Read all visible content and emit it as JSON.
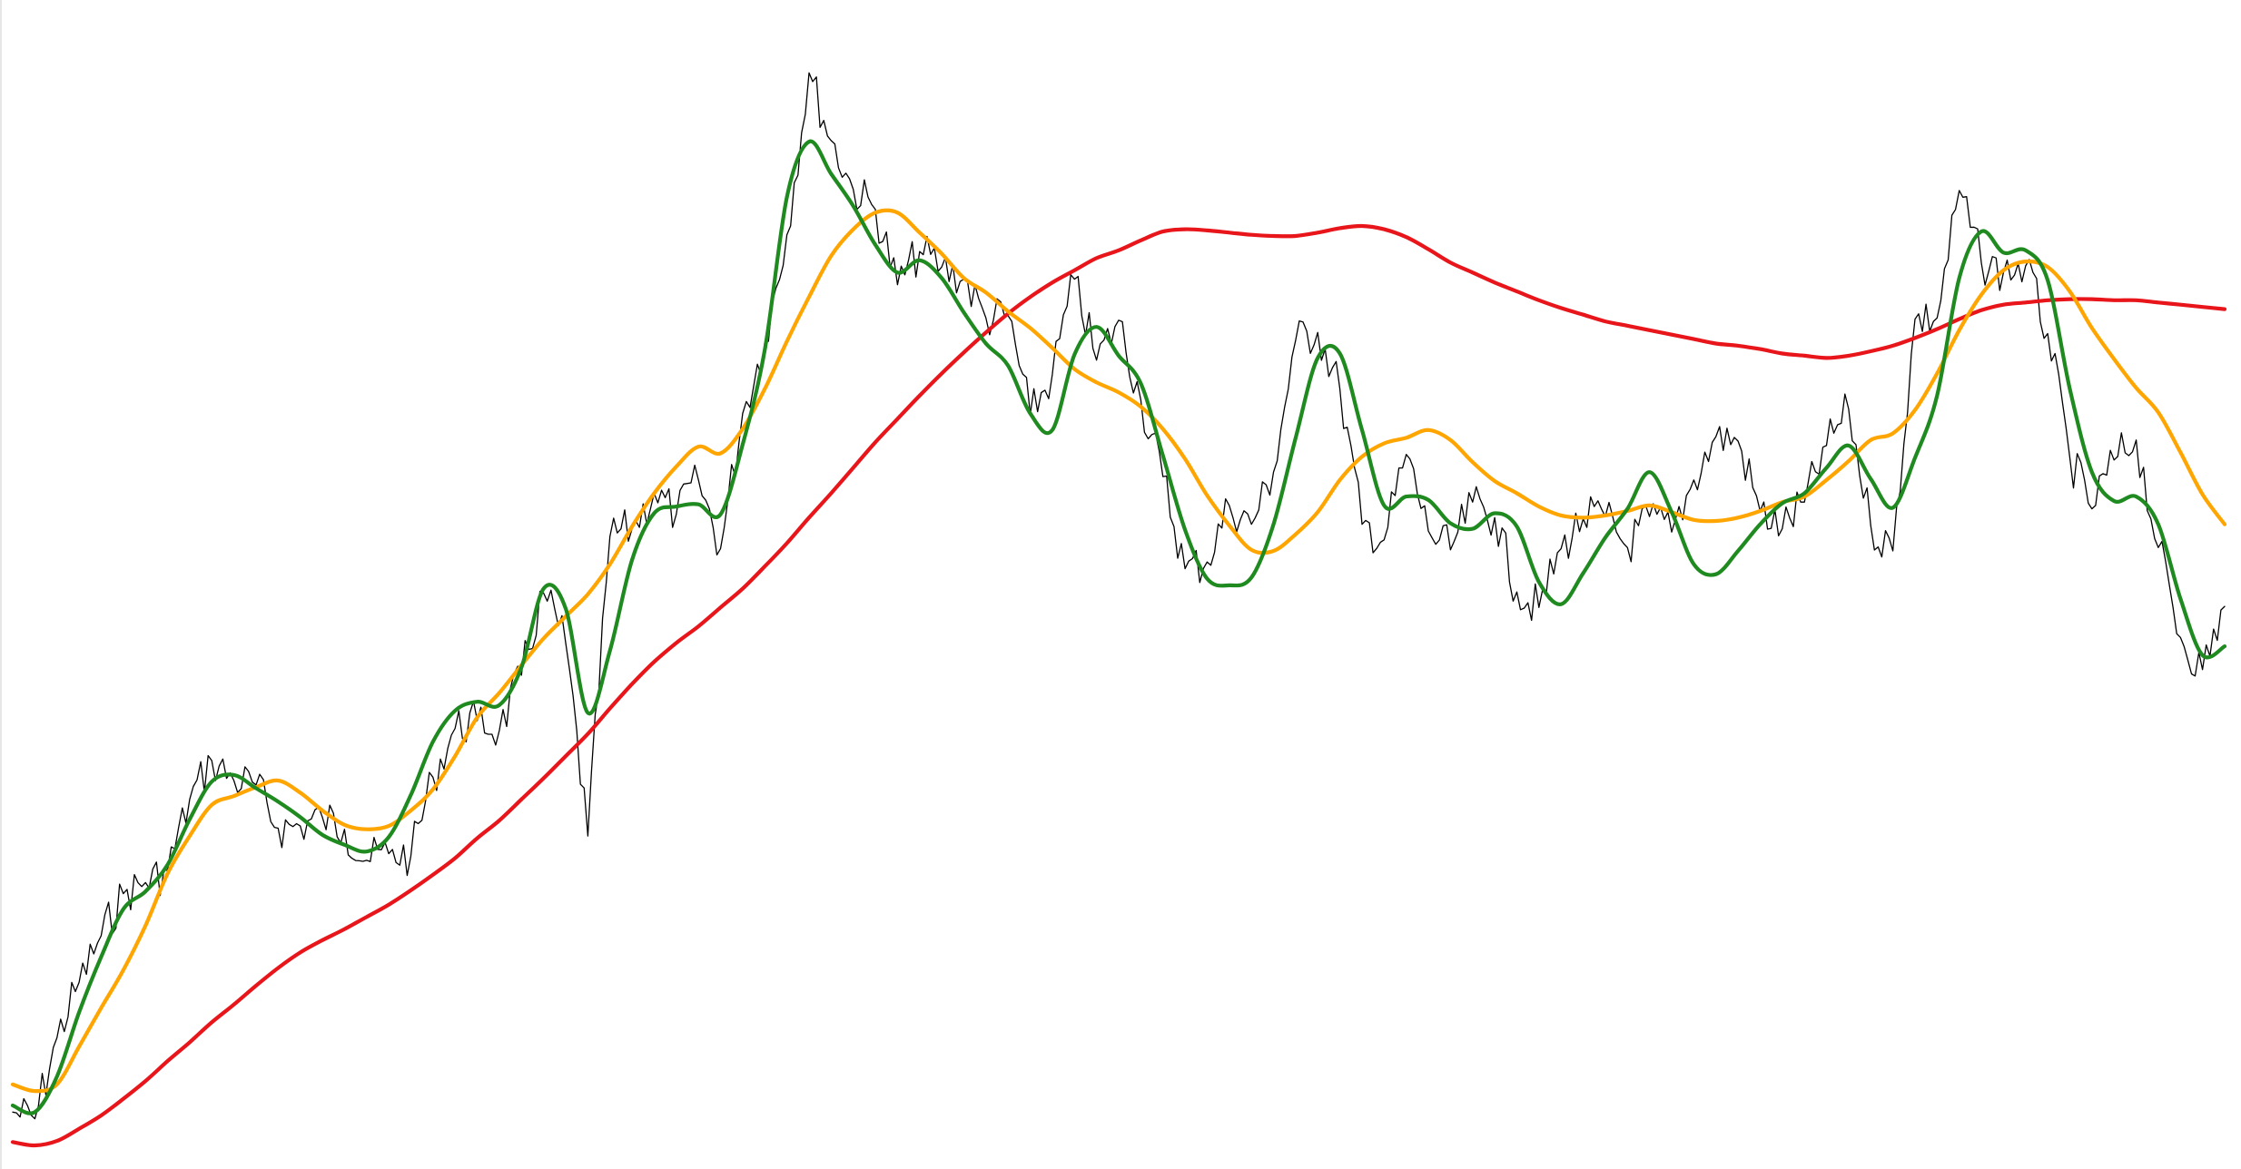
{
  "chart_data": {
    "type": "line",
    "title": "",
    "xlabel": "",
    "ylabel": "",
    "grid": false,
    "legend": "none",
    "xlim": [
      0,
      100
    ],
    "ylim": [
      0,
      100
    ],
    "series": [
      {
        "key": "price",
        "color": "#000000",
        "stroke_role": "thin",
        "x": [
          0,
          1,
          2,
          3,
          4,
          5,
          6,
          7,
          8,
          9,
          10,
          11,
          12,
          13,
          14,
          15,
          16,
          17,
          18,
          19,
          20,
          21,
          22,
          23,
          24,
          25,
          26,
          27,
          28,
          29,
          30,
          31,
          32,
          33,
          34,
          35,
          36,
          37,
          38,
          39,
          40,
          41,
          42,
          43,
          44,
          45,
          46,
          47,
          48,
          49,
          50,
          51,
          52,
          53,
          54,
          55,
          56,
          57,
          58,
          59,
          60,
          61,
          62,
          63,
          64,
          65,
          66,
          67,
          68,
          69,
          70,
          71,
          72,
          73,
          74,
          75,
          76,
          77,
          78,
          79,
          80,
          81,
          82,
          83,
          84,
          85,
          86,
          87,
          88,
          89,
          90,
          91,
          92,
          93,
          94,
          95,
          96,
          97,
          98,
          99,
          100
        ],
        "y": [
          3.0,
          2.4,
          9.7,
          14.7,
          18.9,
          22.7,
          23.7,
          24.8,
          31.2,
          34.7,
          32.9,
          32.5,
          28.6,
          28.8,
          29.6,
          28.5,
          25.7,
          26.3,
          26.1,
          33.2,
          37.6,
          38.3,
          37.4,
          42.4,
          49.8,
          45.3,
          27.9,
          54.9,
          55.6,
          58.8,
          56.9,
          60.0,
          53.8,
          66.0,
          72.4,
          82.1,
          96.7,
          90.6,
          86.2,
          84.4,
          77.6,
          80.6,
          79.2,
          78.1,
          74.6,
          74.8,
          65.9,
          69.5,
          78.1,
          70.8,
          74.4,
          67.2,
          60.3,
          52.0,
          52.6,
          57.7,
          56.0,
          60.7,
          72.6,
          73.3,
          68.2,
          56.0,
          54.6,
          62.3,
          55.4,
          53.7,
          58.0,
          56.6,
          49.9,
          48.5,
          53.8,
          56.5,
          56.7,
          53.9,
          56.7,
          55.3,
          60.0,
          63.9,
          63.5,
          57.2,
          55.6,
          58.0,
          63.1,
          66.4,
          55.9,
          53.6,
          74.5,
          74.6,
          86.1,
          79.6,
          78.7,
          79.3,
          73.2,
          62.0,
          57.4,
          61.8,
          63.6,
          53.9,
          45.8,
          42.9,
          48.6
        ]
      },
      {
        "key": "ma-short",
        "color": "#1f8a1f",
        "stroke_role": "medium",
        "x": [
          0,
          1,
          2,
          3,
          4,
          5,
          6,
          7,
          8,
          9,
          10,
          11,
          12,
          13,
          14,
          15,
          16,
          17,
          18,
          19,
          20,
          21,
          22,
          23,
          24,
          25,
          26,
          27,
          28,
          29,
          30,
          31,
          32,
          33,
          34,
          35,
          36,
          37,
          38,
          39,
          40,
          41,
          42,
          43,
          44,
          45,
          46,
          47,
          48,
          49,
          50,
          51,
          52,
          53,
          54,
          55,
          56,
          57,
          58,
          59,
          60,
          61,
          62,
          63,
          64,
          65,
          66,
          67,
          68,
          69,
          70,
          71,
          72,
          73,
          74,
          75,
          76,
          77,
          78,
          79,
          80,
          81,
          82,
          83,
          84,
          85,
          86,
          87,
          88,
          89,
          90,
          91,
          92,
          93,
          94,
          95,
          96,
          97,
          98,
          99,
          100
        ],
        "y": [
          3.6,
          3.0,
          6.2,
          12.0,
          17.0,
          21.3,
          22.9,
          25.3,
          29.4,
          32.8,
          33.4,
          32.2,
          31.0,
          29.6,
          28.0,
          27.1,
          26.5,
          27.8,
          31.6,
          36.4,
          39.2,
          40.0,
          39.7,
          43.1,
          50.2,
          48.4,
          39.0,
          44.6,
          52.8,
          57.0,
          57.6,
          57.8,
          56.9,
          63.2,
          71.7,
          85.5,
          90.5,
          87.6,
          84.7,
          81.2,
          78.7,
          79.8,
          78.2,
          75.1,
          72.3,
          70.3,
          66.0,
          64.5,
          71.3,
          73.8,
          71.2,
          68.7,
          62.2,
          55.5,
          51.1,
          50.5,
          51.2,
          56.0,
          63.8,
          71.0,
          71.4,
          64.5,
          57.7,
          58.5,
          58.2,
          56.1,
          55.6,
          57.0,
          55.8,
          50.8,
          48.8,
          51.6,
          54.8,
          57.4,
          60.7,
          57.1,
          52.4,
          51.5,
          53.6,
          56.0,
          57.9,
          58.8,
          61.1,
          63.1,
          60.1,
          57.5,
          62.0,
          67.6,
          78.2,
          82.4,
          80.5,
          80.7,
          78.0,
          68.2,
          60.7,
          58.1,
          58.5,
          56.0,
          49.3,
          44.2,
          45.0
        ]
      },
      {
        "key": "ma-medium",
        "color": "#ffa500",
        "stroke_role": "medium",
        "x": [
          0,
          1,
          2,
          3,
          4,
          5,
          6,
          7,
          8,
          9,
          10,
          11,
          12,
          13,
          14,
          15,
          16,
          17,
          18,
          19,
          20,
          21,
          22,
          23,
          24,
          25,
          26,
          27,
          28,
          29,
          30,
          31,
          32,
          33,
          34,
          35,
          36,
          37,
          38,
          39,
          40,
          41,
          42,
          43,
          44,
          45,
          46,
          47,
          48,
          49,
          50,
          51,
          52,
          53,
          54,
          55,
          56,
          57,
          58,
          59,
          60,
          61,
          62,
          63,
          64,
          65,
          66,
          67,
          68,
          69,
          70,
          71,
          72,
          73,
          74,
          75,
          76,
          77,
          78,
          79,
          80,
          81,
          82,
          83,
          84,
          85,
          86,
          87,
          88,
          89,
          90,
          91,
          92,
          93,
          94,
          95,
          96,
          97,
          98,
          99,
          100
        ],
        "y": [
          5.5,
          4.9,
          5.5,
          8.9,
          12.4,
          15.8,
          19.8,
          24.5,
          27.9,
          30.7,
          31.5,
          32.3,
          32.9,
          31.8,
          30.2,
          28.9,
          28.5,
          28.8,
          30.2,
          32.1,
          35.1,
          38.6,
          40.8,
          43.3,
          45.7,
          47.7,
          49.7,
          52.4,
          55.8,
          58.8,
          61.2,
          63.0,
          62.4,
          64.6,
          68.2,
          72.5,
          76.5,
          80.2,
          82.6,
          84.1,
          84.1,
          82.3,
          80.4,
          78.2,
          76.9,
          75.2,
          73.7,
          71.9,
          70.0,
          68.8,
          67.9,
          66.6,
          64.6,
          61.9,
          58.6,
          55.9,
          53.7,
          53.6,
          55.1,
          57.1,
          60.0,
          62.1,
          63.3,
          63.8,
          64.5,
          63.6,
          61.6,
          59.9,
          58.8,
          57.6,
          56.8,
          56.6,
          56.8,
          57.2,
          57.7,
          57.1,
          56.4,
          56.3,
          56.6,
          57.2,
          58.0,
          58.5,
          60.0,
          61.7,
          63.6,
          64.2,
          66.3,
          69.6,
          73.5,
          76.7,
          78.9,
          79.7,
          79.2,
          77.0,
          73.7,
          70.9,
          68.3,
          66.1,
          62.5,
          58.7,
          56.0
        ]
      },
      {
        "key": "ma-long",
        "color": "#e8151b",
        "stroke_role": "medium",
        "x": [
          0,
          1,
          2,
          3,
          4,
          5,
          6,
          7,
          8,
          9,
          10,
          11,
          12,
          13,
          14,
          15,
          16,
          17,
          18,
          19,
          20,
          21,
          22,
          23,
          24,
          25,
          26,
          27,
          28,
          29,
          30,
          31,
          32,
          33,
          34,
          35,
          36,
          37,
          38,
          39,
          40,
          41,
          42,
          43,
          44,
          45,
          46,
          47,
          48,
          49,
          50,
          51,
          52,
          53,
          54,
          55,
          56,
          57,
          58,
          59,
          60,
          61,
          62,
          63,
          64,
          65,
          66,
          67,
          68,
          69,
          70,
          71,
          72,
          73,
          74,
          75,
          76,
          77,
          78,
          79,
          80,
          81,
          82,
          83,
          84,
          85,
          86,
          87,
          88,
          89,
          90,
          91,
          92,
          93,
          94,
          95,
          96,
          97,
          98,
          99,
          100
        ],
        "y": [
          0.3,
          0.0,
          0.4,
          1.5,
          2.7,
          4.2,
          5.8,
          7.6,
          9.3,
          11.1,
          12.7,
          14.4,
          16.0,
          17.4,
          18.5,
          19.5,
          20.6,
          21.7,
          23.0,
          24.4,
          25.9,
          27.7,
          29.3,
          31.2,
          33.1,
          35.1,
          37.1,
          39.4,
          41.6,
          43.6,
          45.3,
          46.8,
          48.5,
          50.2,
          52.2,
          54.3,
          56.6,
          58.8,
          61.1,
          63.4,
          65.5,
          67.6,
          69.6,
          71.5,
          73.3,
          75.0,
          76.5,
          77.8,
          78.9,
          80.0,
          80.7,
          81.6,
          82.4,
          82.6,
          82.5,
          82.3,
          82.1,
          82.0,
          82.0,
          82.3,
          82.7,
          82.9,
          82.6,
          81.9,
          80.8,
          79.6,
          78.7,
          77.8,
          77.0,
          76.2,
          75.5,
          74.9,
          74.3,
          73.9,
          73.5,
          73.1,
          72.7,
          72.3,
          72.1,
          71.8,
          71.4,
          71.2,
          71.0,
          71.2,
          71.6,
          72.1,
          72.8,
          73.6,
          74.5,
          75.3,
          75.8,
          76.0,
          76.2,
          76.3,
          76.3,
          76.2,
          76.2,
          76.0,
          75.8,
          75.6,
          75.4
        ]
      }
    ]
  }
}
